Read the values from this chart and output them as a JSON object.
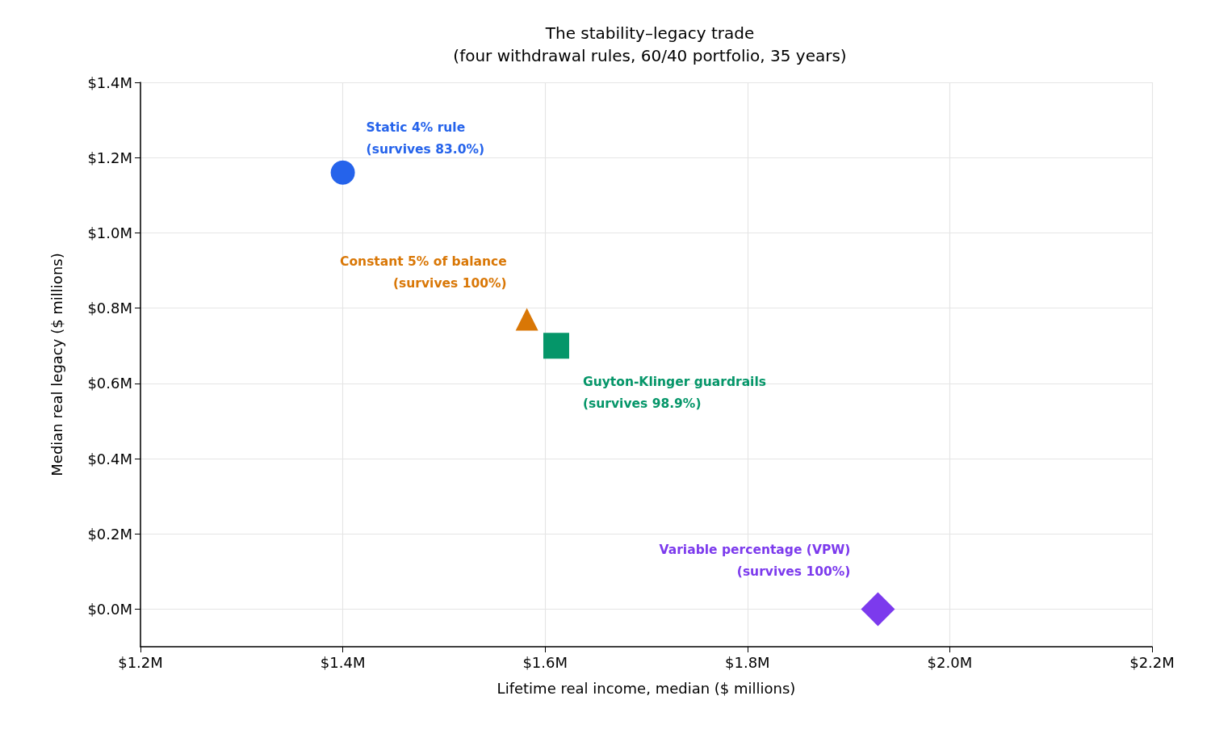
{
  "chart_data": {
    "type": "scatter",
    "title": "The stability–legacy trade",
    "subtitle": "(four withdrawal rules, 60/40 portfolio, 35 years)",
    "xlabel": "Lifetime real income, median ($ millions)",
    "ylabel": "Median real legacy ($ millions)",
    "xlim": [
      1.2,
      2.2
    ],
    "xticks": [
      {
        "value": 1.2,
        "label": "$1.2M"
      },
      {
        "value": 1.4,
        "label": "$1.4M"
      },
      {
        "value": 1.6,
        "label": "$1.6M"
      },
      {
        "value": 1.8,
        "label": "$1.8M"
      },
      {
        "value": 2.0,
        "label": "$2.0M"
      },
      {
        "value": 2.2,
        "label": "$2.2M"
      }
    ],
    "ylim": [
      -0.1,
      1.4
    ],
    "yticks": [
      {
        "value": 0,
        "label": "$0.0M"
      },
      {
        "value": 0.2,
        "label": "$0.2M"
      },
      {
        "value": 0.4,
        "label": "$0.4M"
      },
      {
        "value": 0.6,
        "label": "$0.6M"
      },
      {
        "value": 0.8,
        "label": "$0.8M"
      },
      {
        "value": 1.0,
        "label": "$1.0M"
      },
      {
        "value": 1.2,
        "label": "$1.2M"
      },
      {
        "value": 1.4,
        "label": "$1.4M"
      }
    ],
    "grid": true,
    "series": [
      {
        "name": "Static 4% rule\n(survives 83.0%)",
        "color": "#2563eb",
        "marker": "circle",
        "x": [
          1.4
        ],
        "values": [
          1.16
        ]
      },
      {
        "name": "Constant 5% of balance\n(survives 100%)",
        "color": "#d97706",
        "marker": "triangle",
        "x": [
          1.582
        ],
        "values": [
          0.77
        ]
      },
      {
        "name": "Guyton-Klinger guardrails\n(survives 98.9%)",
        "color": "#059669",
        "marker": "square",
        "x": [
          1.611
        ],
        "values": [
          0.7
        ]
      },
      {
        "name": "Variable percentage (VPW)\n(survives 100%)",
        "color": "#7c3aed",
        "marker": "diamond",
        "x": [
          1.929
        ],
        "values": [
          0.0
        ]
      }
    ]
  }
}
